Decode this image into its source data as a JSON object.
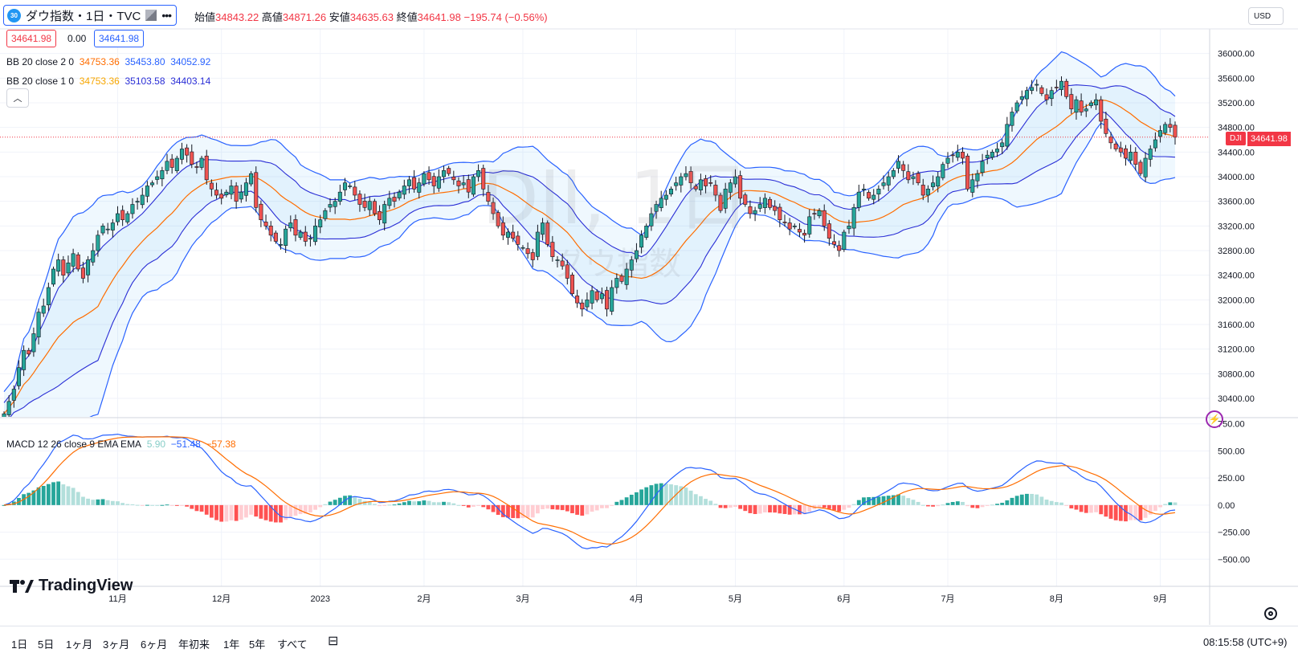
{
  "header": {
    "symbol_badge": "30",
    "symbol_title": "ダウ指数・1日・TVC",
    "ohlc": {
      "open_label": "始値",
      "open": "34843.22",
      "high_label": "高値",
      "high": "34871.26",
      "low_label": "安値",
      "low": "34635.63",
      "close_label": "終値",
      "close": "34641.98",
      "change": "−195.74 (−0.56%)"
    },
    "sell_price": "34641.98",
    "spread": "0.00",
    "buy_price": "34641.98",
    "more_icon": "ellipsis-icon",
    "flag_icon": "flag-icon"
  },
  "indicators": {
    "bb2": {
      "label": "BB 20 close 2 0",
      "basis": "34753.36",
      "upper": "35453.80",
      "lower": "34052.92"
    },
    "bb1": {
      "label": "BB 20 close 1 0",
      "basis": "34753.36",
      "upper": "35103.58",
      "lower": "34403.14"
    },
    "macd": {
      "label": "MACD 12 26 close 9 EMA EMA",
      "hist": "5.90",
      "macd": "−51.48",
      "signal": "−57.38"
    }
  },
  "currency_button": "USD",
  "last_price_tag": {
    "symbol": "DJI",
    "value": "34641.98"
  },
  "watermark": {
    "main": "DJI, 1日",
    "sub": "ダウ指数"
  },
  "price_axis": [
    "36000.00",
    "35600.00",
    "35200.00",
    "34800.00",
    "34400.00",
    "34000.00",
    "33600.00",
    "33200.00",
    "32800.00",
    "32400.00",
    "32000.00",
    "31600.00",
    "31200.00",
    "30800.00",
    "30400.00"
  ],
  "macd_axis": [
    "750.00",
    "500.00",
    "250.00",
    "0.00",
    "−250.00",
    "−500.00"
  ],
  "time_axis": [
    "11月",
    "12月",
    "2023",
    "2月",
    "3月",
    "4月",
    "5月",
    "6月",
    "7月",
    "8月",
    "9月"
  ],
  "timeframes": [
    "1日",
    "5日",
    "1ヶ月",
    "3ヶ月",
    "6ヶ月",
    "年初来",
    "1年",
    "5年",
    "すべて"
  ],
  "clock": "08:15:58 (UTC+9)",
  "brand": "TradingView",
  "chart_data": {
    "type": "candlestick",
    "title": "ダウ指数・1日・TVC",
    "ylim": [
      30100,
      36400
    ],
    "macd_ylim": [
      -750,
      800
    ],
    "months": [
      {
        "label": "11月",
        "index": 23
      },
      {
        "label": "12月",
        "index": 44
      },
      {
        "label": "2023",
        "index": 64
      },
      {
        "label": "2月",
        "index": 85
      },
      {
        "label": "3月",
        "index": 105
      },
      {
        "label": "4月",
        "index": 128
      },
      {
        "label": "5月",
        "index": 148
      },
      {
        "label": "6月",
        "index": 170
      },
      {
        "label": "7月",
        "index": 191
      },
      {
        "label": "8月",
        "index": 213
      },
      {
        "label": "9月",
        "index": 234
      }
    ],
    "close": [
      30150,
      30350,
      30550,
      30900,
      31180,
      31120,
      31450,
      31800,
      31900,
      32200,
      32500,
      32650,
      32400,
      32600,
      32750,
      32500,
      32350,
      32650,
      32800,
      33050,
      33200,
      33150,
      33250,
      33400,
      33300,
      33400,
      33550,
      33600,
      33700,
      33850,
      33900,
      34000,
      34100,
      34250,
      34150,
      34300,
      34450,
      34350,
      34200,
      34150,
      34300,
      33950,
      33800,
      33700,
      33650,
      33750,
      33850,
      33600,
      33750,
      33900,
      34050,
      33500,
      33300,
      33200,
      33050,
      32950,
      32900,
      33150,
      33250,
      33050,
      33100,
      32950,
      33000,
      33200,
      33300,
      33450,
      33550,
      33600,
      33750,
      33900,
      33850,
      33700,
      33550,
      33500,
      33600,
      33400,
      33300,
      33550,
      33650,
      33600,
      33750,
      33850,
      33950,
      33800,
      33900,
      34050,
      33950,
      33850,
      34000,
      34100,
      34050,
      33950,
      33850,
      33900,
      33750,
      34000,
      34100,
      33800,
      33600,
      33400,
      33200,
      33050,
      33100,
      33000,
      32900,
      32850,
      32750,
      32650,
      33100,
      33250,
      32900,
      32700,
      32650,
      32550,
      32350,
      32100,
      31950,
      31850,
      32000,
      32150,
      32000,
      32100,
      31850,
      32200,
      32350,
      32300,
      32500,
      32650,
      32800,
      33050,
      33200,
      33400,
      33550,
      33650,
      33700,
      33800,
      33900,
      34000,
      34050,
      33900,
      33800,
      33950,
      33850,
      33900,
      33700,
      33450,
      33800,
      33900,
      34000,
      33650,
      33550,
      33400,
      33450,
      33550,
      33650,
      33500,
      33450,
      33300,
      33250,
      33150,
      33200,
      33100,
      33050,
      33350,
      33400,
      33450,
      33200,
      33000,
      32900,
      32800,
      33100,
      33200,
      33500,
      33750,
      33800,
      33650,
      33700,
      33800,
      33900,
      34000,
      34100,
      34250,
      34100,
      33950,
      34000,
      33900,
      33700,
      33800,
      33900,
      34000,
      34200,
      34300,
      34350,
      34400,
      34300,
      33800,
      33950,
      34050,
      34250,
      34350,
      34400,
      34450,
      34550,
      34850,
      35050,
      35200,
      35300,
      35400,
      35450,
      35500,
      35350,
      35250,
      35400,
      35450,
      35550,
      35300,
      35100,
      35250,
      35050,
      35100,
      35200,
      35250,
      34900,
      34700,
      34550,
      34450,
      34400,
      34300,
      34400,
      34200,
      34050,
      34300,
      34450,
      34600,
      34750,
      34850,
      34800,
      34642
    ]
  }
}
